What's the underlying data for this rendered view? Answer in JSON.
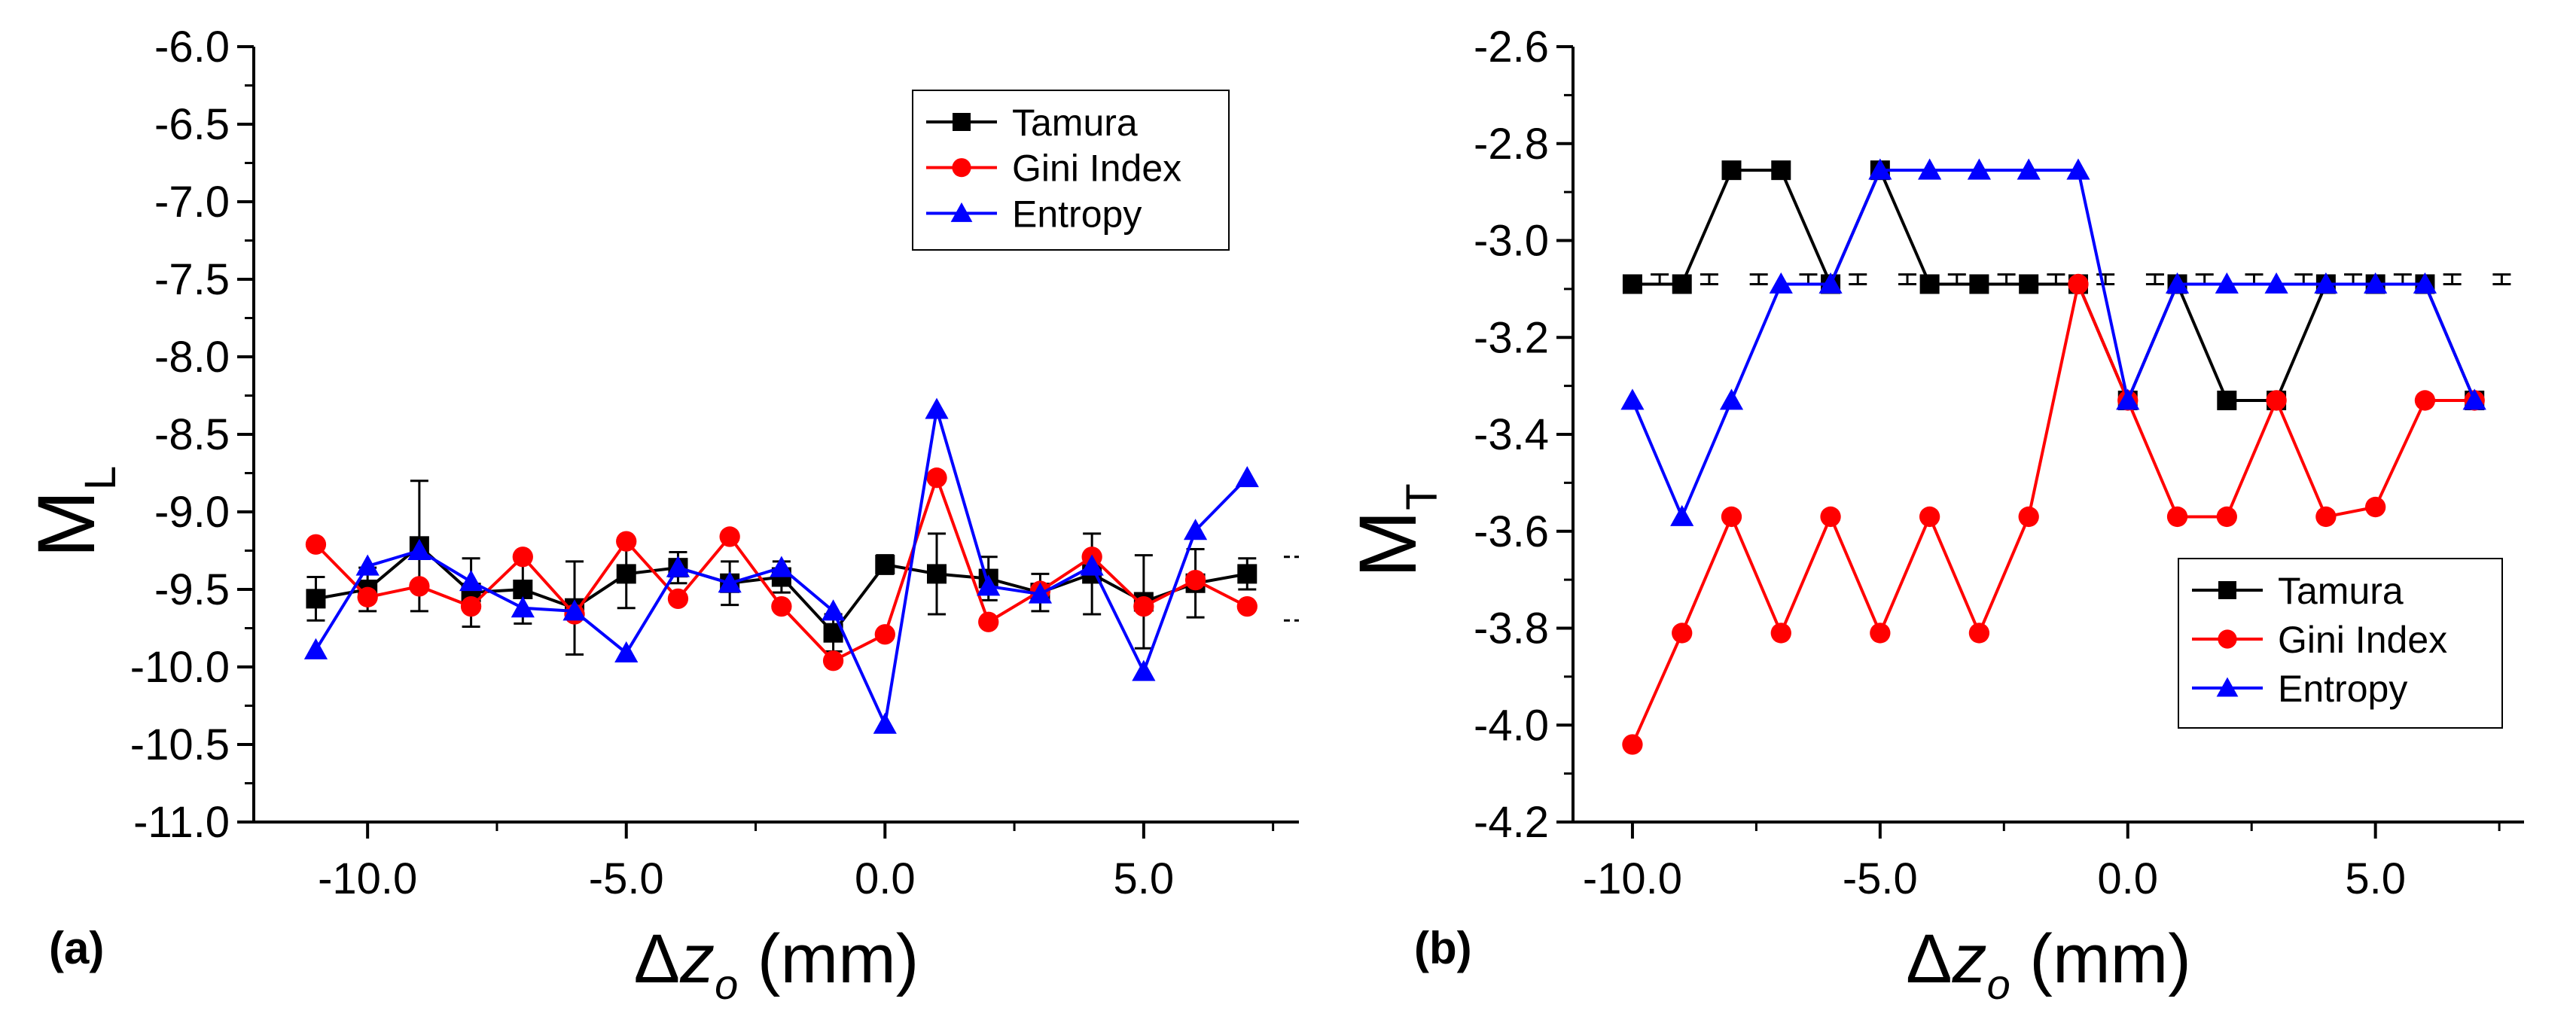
{
  "colors": {
    "Tamura": "#000000",
    "Gini Index": "#ff0000",
    "Entropy": "#0000ff"
  },
  "chart_data": [
    {
      "panel_label": "(a)",
      "type": "line",
      "ylabel_main": "M",
      "ylabel_sub": "L",
      "xlabel": {
        "delta": "Δ",
        "var": "z",
        "sub": "o",
        "unit": " (mm)"
      },
      "xlim": [
        -12.2,
        8.0
      ],
      "ylim": [
        -11.0,
        -6.0
      ],
      "xticks": [
        -10.0,
        -5.0,
        0.0,
        5.0
      ],
      "xtick_labels": [
        "-10.0",
        "-5.0",
        "0.0",
        "5.0"
      ],
      "yticks": [
        -6.0,
        -6.5,
        -7.0,
        -7.5,
        -8.0,
        -8.5,
        -9.0,
        -9.5,
        -10.0,
        -10.5,
        -11.0
      ],
      "ytick_labels": [
        "-6.0",
        "-6.5",
        "-7.0",
        "-7.5",
        "-8.0",
        "-8.5",
        "-9.0",
        "-9.5",
        "-10.0",
        "-10.5",
        "-11.0"
      ],
      "legend_position": "top-right",
      "x": [
        -11,
        -10,
        -9,
        -8,
        -7,
        -6,
        -5,
        -4,
        -3,
        -2,
        -1,
        0,
        1,
        2,
        3,
        4,
        5,
        6,
        7
      ],
      "series": [
        {
          "name": "Tamura",
          "marker": "square",
          "values": [
            -9.56,
            -9.5,
            -9.22,
            -9.52,
            -9.5,
            -9.62,
            -9.4,
            -9.36,
            -9.46,
            -9.42,
            -9.78,
            -9.34,
            -9.4,
            -9.43,
            -9.52,
            -9.4,
            -9.58,
            -9.46,
            -9.4
          ],
          "errors": [
            0.14,
            0.14,
            0.42,
            0.22,
            0.22,
            0.3,
            0.22,
            0.1,
            0.14,
            0.1,
            0.12,
            0.06,
            0.26,
            0.14,
            0.12,
            0.26,
            0.3,
            0.22,
            0.1
          ]
        },
        {
          "name": "Gini Index",
          "marker": "circle",
          "values": [
            -9.21,
            -9.55,
            -9.48,
            -9.61,
            -9.29,
            -9.66,
            -9.19,
            -9.56,
            -9.16,
            -9.61,
            -9.96,
            -9.79,
            -8.78,
            -9.71,
            -9.51,
            -9.29,
            -9.61,
            -9.44,
            -9.61
          ]
        },
        {
          "name": "Entropy",
          "marker": "triangle",
          "values": [
            -9.89,
            -9.35,
            -9.25,
            -9.45,
            -9.62,
            -9.64,
            -9.91,
            -9.36,
            -9.46,
            -9.36,
            -9.64,
            -10.37,
            -8.34,
            -9.48,
            -9.53,
            -9.35,
            -10.03,
            -9.12,
            -8.78
          ]
        }
      ]
    },
    {
      "panel_label": "(b)",
      "type": "line",
      "ylabel_main": "M",
      "ylabel_sub": "T",
      "xlabel": {
        "delta": "Δ",
        "var": "z",
        "sub": "o",
        "unit": " (mm)"
      },
      "xlim": [
        -11.2,
        8.0
      ],
      "ylim": [
        -4.2,
        -2.6
      ],
      "xticks": [
        -10.0,
        -5.0,
        0.0,
        5.0
      ],
      "xtick_labels": [
        "-10.0",
        "-5.0",
        "0.0",
        "5.0"
      ],
      "yticks": [
        -2.6,
        -2.8,
        -3.0,
        -3.2,
        -3.4,
        -3.6,
        -3.8,
        -4.0,
        -4.2
      ],
      "ytick_labels": [
        "-2.6",
        "-2.8",
        "-3.0",
        "-3.2",
        "-3.4",
        "-3.6",
        "-3.8",
        "-4.0",
        "-4.2"
      ],
      "legend_position": "bottom-right",
      "x": [
        -10,
        -9,
        -8,
        -7,
        -6,
        -5,
        -4,
        -3,
        -2,
        -1,
        0,
        1,
        2,
        3,
        4,
        5,
        6,
        7
      ],
      "series": [
        {
          "name": "Tamura",
          "marker": "square",
          "values": [
            -3.09,
            -3.09,
            -2.855,
            -2.855,
            -3.09,
            -2.855,
            -3.09,
            -3.09,
            -3.09,
            -3.09,
            -3.33,
            -3.09,
            -3.33,
            -3.33,
            -3.09,
            -3.09,
            -3.09,
            -3.33
          ],
          "errors": [
            0.01,
            0.01,
            0.01,
            0.01,
            0.01,
            0.01,
            0.01,
            0.01,
            0.01,
            0.01,
            0.01,
            0.01,
            0.01,
            0.01,
            0.01,
            0.01,
            0.01,
            0.01
          ],
          "error_x_offset": 0.55,
          "error_center": -3.08
        },
        {
          "name": "Gini Index",
          "marker": "circle",
          "values": [
            -4.04,
            -3.81,
            -3.57,
            -3.81,
            -3.57,
            -3.81,
            -3.57,
            -3.81,
            -3.57,
            -3.09,
            -3.33,
            -3.57,
            -3.57,
            -3.33,
            -3.57,
            -3.55,
            -3.33,
            -3.33
          ]
        },
        {
          "name": "Entropy",
          "marker": "triangle",
          "values": [
            -3.33,
            -3.57,
            -3.33,
            -3.09,
            -3.09,
            -2.855,
            -2.855,
            -2.855,
            -2.855,
            -2.855,
            -3.33,
            -3.09,
            -3.09,
            -3.09,
            -3.09,
            -3.09,
            -3.09,
            -3.33
          ]
        }
      ]
    }
  ]
}
